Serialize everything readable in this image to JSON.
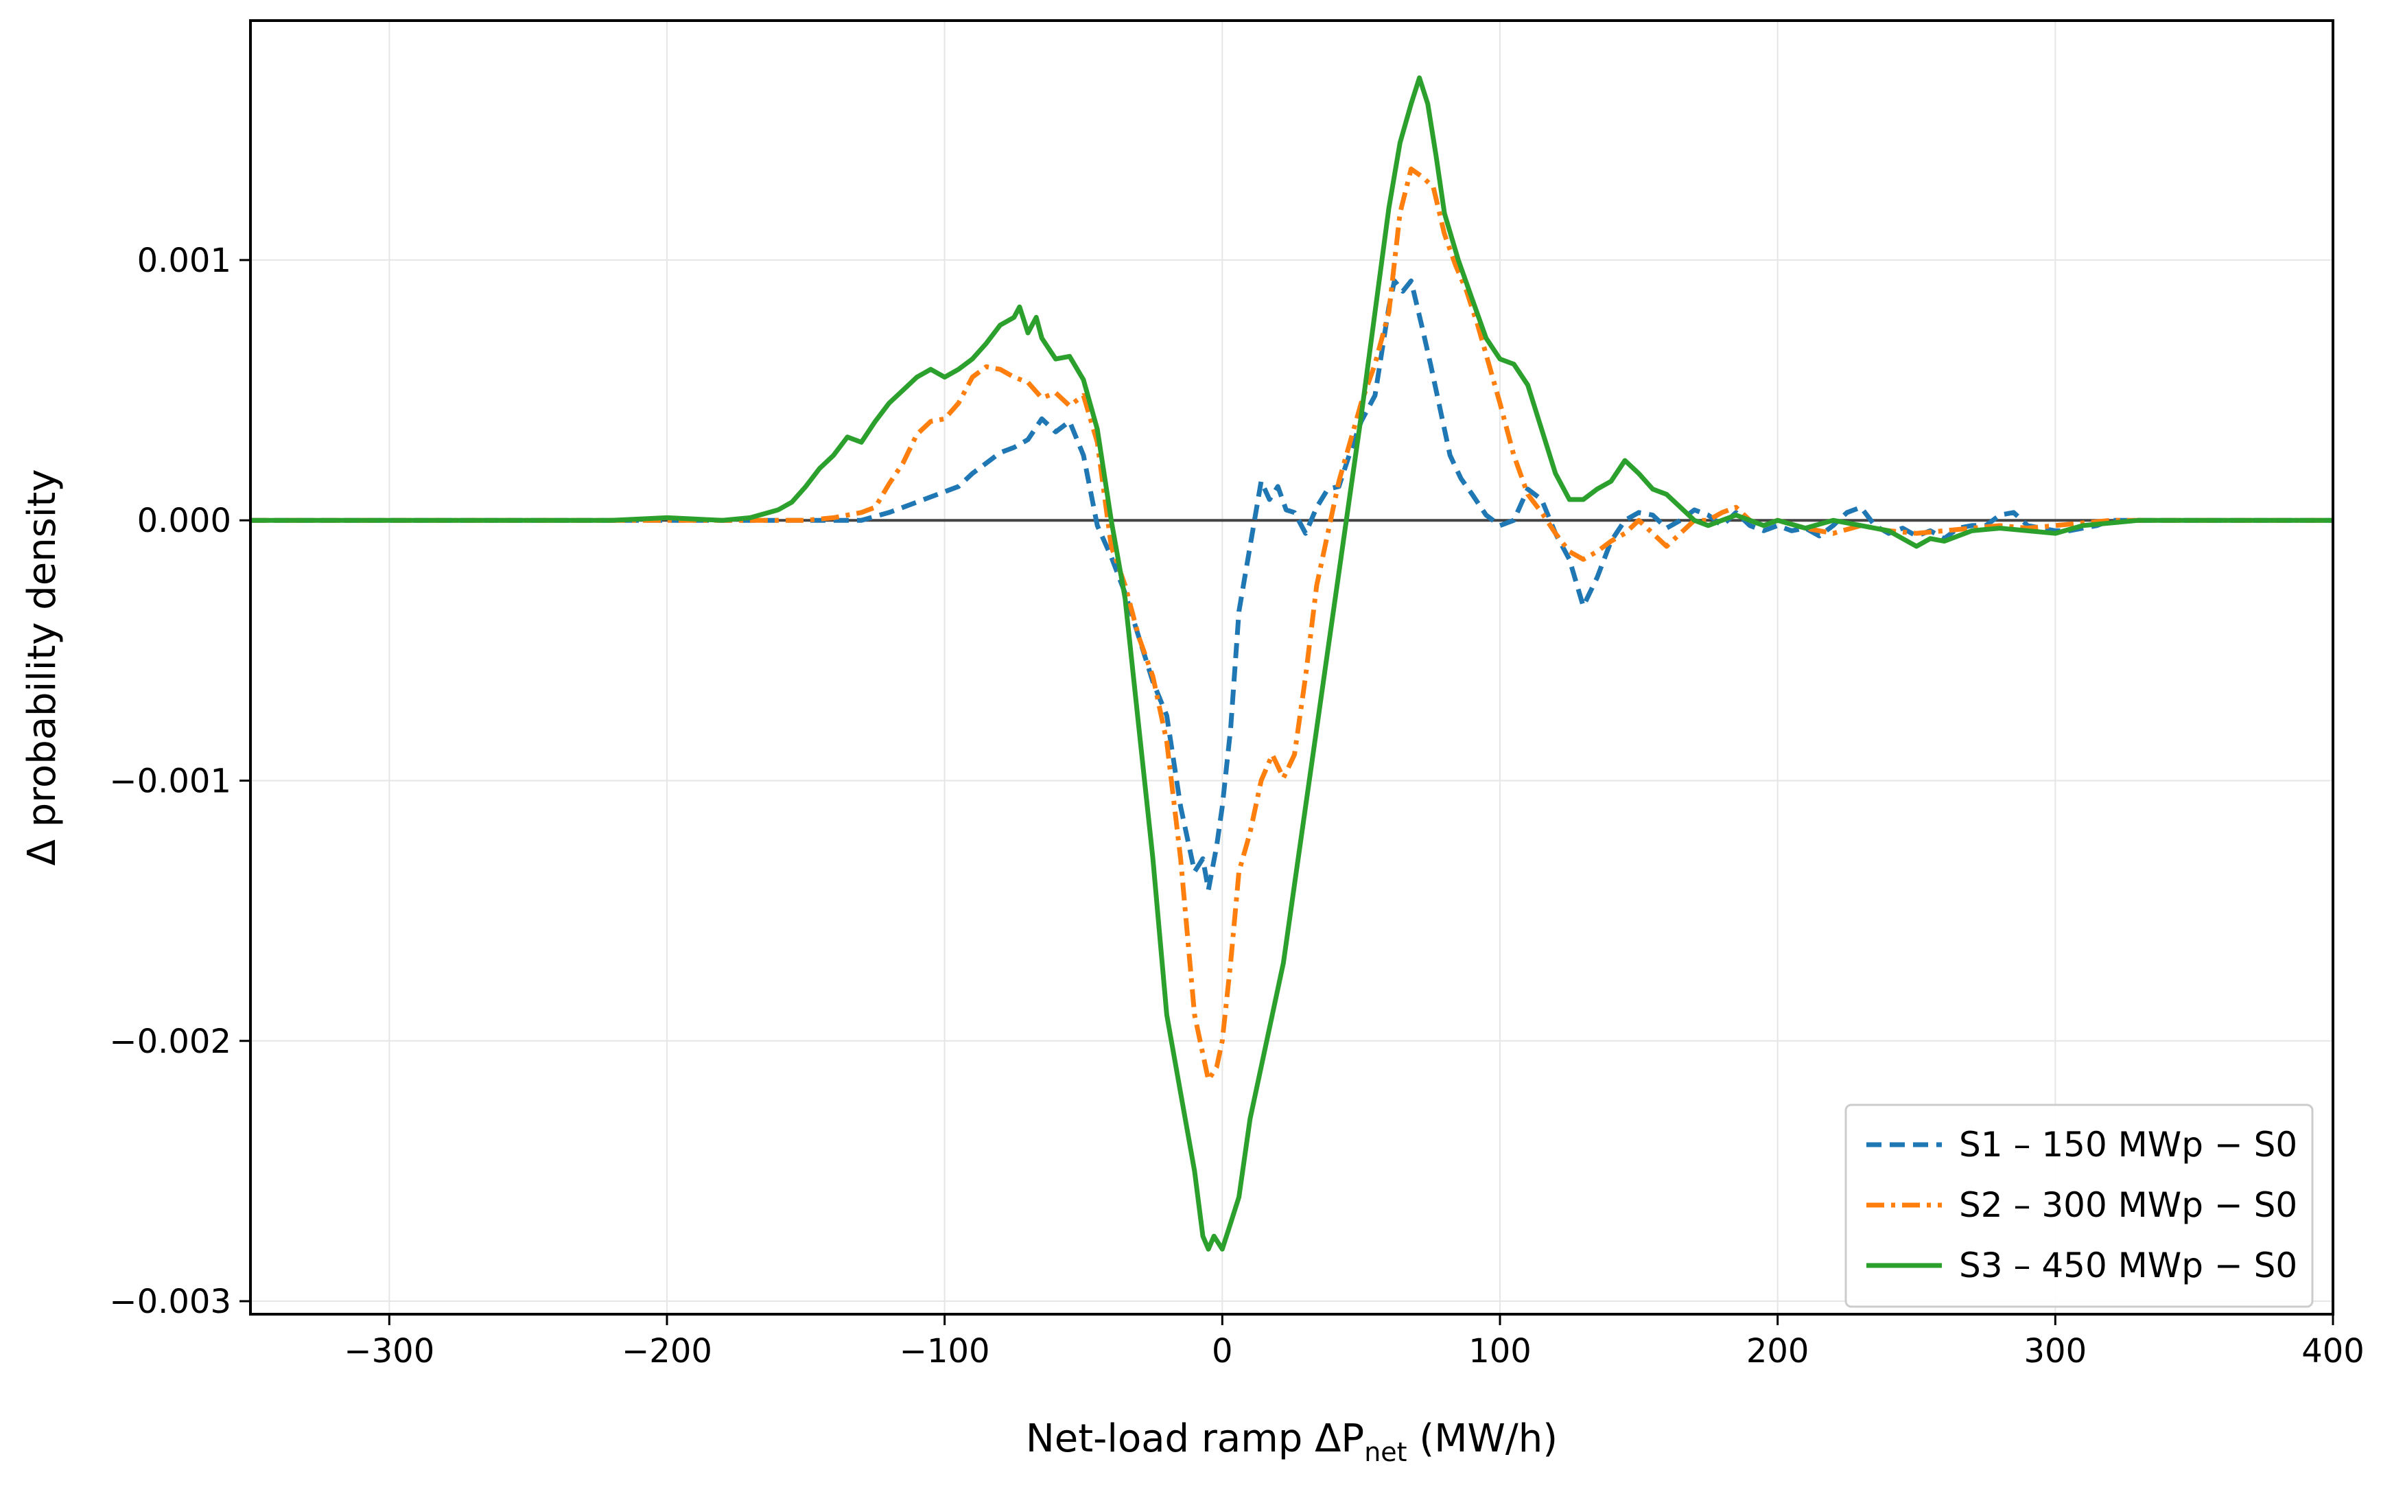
{
  "chart_data": {
    "type": "line",
    "xlabel": {
      "prefix": "Net-load ramp ΔP",
      "sub": "net",
      "suffix": " (MW/h)"
    },
    "ylabel": "Δ probability density",
    "xlim": [
      -350,
      400
    ],
    "ylim": [
      -0.00305,
      0.00192
    ],
    "xticks": [
      -300,
      -200,
      -100,
      0,
      100,
      200,
      300,
      400
    ],
    "xtick_labels": [
      "−300",
      "−200",
      "−100",
      "0",
      "100",
      "200",
      "300",
      "400"
    ],
    "yticks": [
      -0.003,
      -0.002,
      -0.001,
      0.0,
      0.001
    ],
    "ytick_labels": [
      "−0.003",
      "−0.002",
      "−0.001",
      "0.000",
      "0.001"
    ],
    "grid": true,
    "zero_line": true,
    "legend_position": "lower right",
    "series": [
      {
        "name": "S1 – 150 MWp − S0",
        "color": "#1f77b4",
        "style": "dashed",
        "x": [
          -350,
          -130,
          -120,
          -110,
          -100,
          -95,
          -90,
          -85,
          -80,
          -75,
          -70,
          -65,
          -60,
          -55,
          -50,
          -45,
          -40,
          -35,
          -30,
          -25,
          -20,
          -15,
          -10,
          -7,
          -5,
          -2,
          0,
          3,
          6,
          10,
          14,
          17,
          20,
          23,
          26,
          30,
          34,
          38,
          42,
          46,
          50,
          55,
          60,
          62,
          65,
          68,
          72,
          75,
          78,
          82,
          86,
          90,
          95,
          100,
          105,
          110,
          115,
          120,
          125,
          130,
          135,
          140,
          145,
          150,
          155,
          160,
          165,
          170,
          175,
          180,
          185,
          190,
          195,
          200,
          205,
          210,
          215,
          220,
          225,
          230,
          235,
          240,
          245,
          250,
          255,
          260,
          265,
          270,
          275,
          280,
          285,
          290,
          295,
          300,
          305,
          310,
          315,
          320,
          330,
          400
        ],
        "y": [
          0.0,
          0.0,
          3e-05,
          7e-05,
          0.00011,
          0.00013,
          0.00018,
          0.00022,
          0.00026,
          0.00028,
          0.00031,
          0.00039,
          0.00034,
          0.00038,
          0.00025,
          -2e-05,
          -0.00014,
          -0.00028,
          -0.00045,
          -0.00062,
          -0.00075,
          -0.0011,
          -0.00135,
          -0.0013,
          -0.00142,
          -0.00125,
          -0.0011,
          -0.0008,
          -0.00035,
          -0.0001,
          0.00015,
          8e-05,
          0.00013,
          4e-05,
          3e-05,
          -5e-05,
          5e-05,
          0.00012,
          0.00013,
          0.00026,
          0.00038,
          0.00048,
          0.00082,
          0.00092,
          0.00088,
          0.00092,
          0.00074,
          0.0006,
          0.00045,
          0.00025,
          0.00016,
          0.0001,
          2e-05,
          -2e-05,
          0.0,
          0.00012,
          8e-05,
          -5e-05,
          -0.00015,
          -0.00033,
          -0.00022,
          -8e-05,
          0.0,
          3e-05,
          2e-05,
          -3e-05,
          0.0,
          4e-05,
          2e-05,
          -2e-05,
          3e-05,
          -2e-05,
          -4e-05,
          -2e-05,
          -4e-05,
          -3e-05,
          -6e-05,
          -2e-05,
          3e-05,
          5e-05,
          -2e-05,
          -5e-05,
          -3e-05,
          -6e-05,
          -4e-05,
          -7e-05,
          -3e-05,
          -2e-05,
          -2e-05,
          2e-05,
          3e-05,
          -2e-05,
          -3e-05,
          -4e-05,
          -4e-05,
          -3e-05,
          -2e-05,
          0.0,
          0.0,
          0.0
        ]
      },
      {
        "name": "S2 – 300 MWp − S0",
        "color": "#ff7f0e",
        "style": "dashdot",
        "x": [
          -350,
          -150,
          -140,
          -130,
          -125,
          -120,
          -115,
          -110,
          -105,
          -100,
          -95,
          -90,
          -85,
          -80,
          -75,
          -70,
          -65,
          -60,
          -55,
          -50,
          -45,
          -40,
          -35,
          -30,
          -25,
          -20,
          -15,
          -10,
          -7,
          -5,
          -2,
          0,
          3,
          6,
          10,
          14,
          18,
          22,
          26,
          30,
          34,
          38,
          42,
          46,
          50,
          55,
          60,
          64,
          68,
          72,
          76,
          80,
          84,
          88,
          92,
          96,
          100,
          105,
          110,
          115,
          120,
          125,
          130,
          135,
          140,
          145,
          150,
          155,
          160,
          165,
          170,
          175,
          180,
          185,
          190,
          195,
          200,
          210,
          220,
          230,
          240,
          250,
          260,
          270,
          280,
          290,
          300,
          310,
          320,
          330,
          400
        ],
        "y": [
          0.0,
          0.0,
          1e-05,
          3e-05,
          5e-05,
          0.00014,
          0.00022,
          0.00033,
          0.00038,
          0.00039,
          0.00045,
          0.00055,
          0.00059,
          0.00058,
          0.00055,
          0.00053,
          0.00047,
          0.00049,
          0.00044,
          0.00048,
          0.0003,
          -0.0001,
          -0.00025,
          -0.00045,
          -0.0006,
          -0.00085,
          -0.0013,
          -0.0019,
          -0.00205,
          -0.00215,
          -0.0021,
          -0.002,
          -0.0017,
          -0.00135,
          -0.0012,
          -0.001,
          -0.0009,
          -0.00099,
          -0.0009,
          -0.0006,
          -0.00025,
          -5e-05,
          0.00015,
          0.0003,
          0.00045,
          0.0006,
          0.0008,
          0.00118,
          0.00135,
          0.00132,
          0.00128,
          0.0011,
          0.00098,
          0.00088,
          0.00075,
          0.0006,
          0.00045,
          0.00025,
          0.0001,
          3e-05,
          -5e-05,
          -0.00012,
          -0.00015,
          -0.00012,
          -8e-05,
          -5e-05,
          0.0,
          -5e-05,
          -0.0001,
          -5e-05,
          0.0,
          0.0,
          3e-05,
          5e-05,
          0.0,
          -2e-05,
          0.0,
          -3e-05,
          -5e-05,
          -2e-05,
          -4e-05,
          -5e-05,
          -4e-05,
          -3e-05,
          -2e-05,
          -3e-05,
          -2e-05,
          -1e-05,
          0.0,
          0.0,
          0.0
        ]
      },
      {
        "name": "S3 – 450 MWp − S0",
        "color": "#2ca02c",
        "style": "solid",
        "x": [
          -350,
          -220,
          -200,
          -180,
          -170,
          -160,
          -155,
          -150,
          -145,
          -140,
          -135,
          -130,
          -125,
          -120,
          -115,
          -110,
          -105,
          -100,
          -95,
          -90,
          -85,
          -80,
          -75,
          -73,
          -70,
          -67,
          -65,
          -60,
          -55,
          -50,
          -45,
          -40,
          -35,
          -30,
          -25,
          -20,
          -15,
          -10,
          -7,
          -5,
          -3,
          0,
          3,
          6,
          10,
          14,
          18,
          22,
          26,
          30,
          34,
          38,
          42,
          46,
          50,
          55,
          60,
          64,
          68,
          71,
          74,
          77,
          80,
          85,
          90,
          95,
          100,
          105,
          110,
          115,
          120,
          125,
          130,
          135,
          140,
          145,
          150,
          155,
          160,
          165,
          170,
          175,
          180,
          185,
          190,
          195,
          200,
          210,
          220,
          230,
          240,
          250,
          255,
          260,
          265,
          270,
          280,
          290,
          300,
          310,
          320,
          330,
          400
        ],
        "y": [
          0.0,
          0.0,
          1e-05,
          0.0,
          1e-05,
          4e-05,
          7e-05,
          0.00013,
          0.0002,
          0.00025,
          0.00032,
          0.0003,
          0.00038,
          0.00045,
          0.0005,
          0.00055,
          0.00058,
          0.00055,
          0.00058,
          0.00062,
          0.00068,
          0.00075,
          0.00078,
          0.00082,
          0.00072,
          0.00078,
          0.0007,
          0.00062,
          0.00063,
          0.00054,
          0.00035,
          0.0,
          -0.0003,
          -0.0008,
          -0.0013,
          -0.0019,
          -0.0022,
          -0.0025,
          -0.00275,
          -0.0028,
          -0.00275,
          -0.0028,
          -0.0027,
          -0.0026,
          -0.0023,
          -0.0021,
          -0.0019,
          -0.0017,
          -0.0014,
          -0.0011,
          -0.0008,
          -0.0005,
          -0.0002,
          0.0001,
          0.0004,
          0.0008,
          0.0012,
          0.00145,
          0.0016,
          0.0017,
          0.0016,
          0.0014,
          0.00118,
          0.001,
          0.00085,
          0.0007,
          0.00062,
          0.0006,
          0.00052,
          0.00035,
          0.00018,
          8e-05,
          8e-05,
          0.00012,
          0.00015,
          0.00023,
          0.00018,
          0.00012,
          0.0001,
          5e-05,
          0.0,
          -2e-05,
          0.0,
          2e-05,
          0.0,
          -2e-05,
          0.0,
          -3e-05,
          0.0,
          -2e-05,
          -4e-05,
          -0.0001,
          -7e-05,
          -8e-05,
          -6e-05,
          -4e-05,
          -3e-05,
          -4e-05,
          -5e-05,
          -2e-05,
          -1e-05,
          0.0,
          0.0
        ]
      }
    ]
  }
}
